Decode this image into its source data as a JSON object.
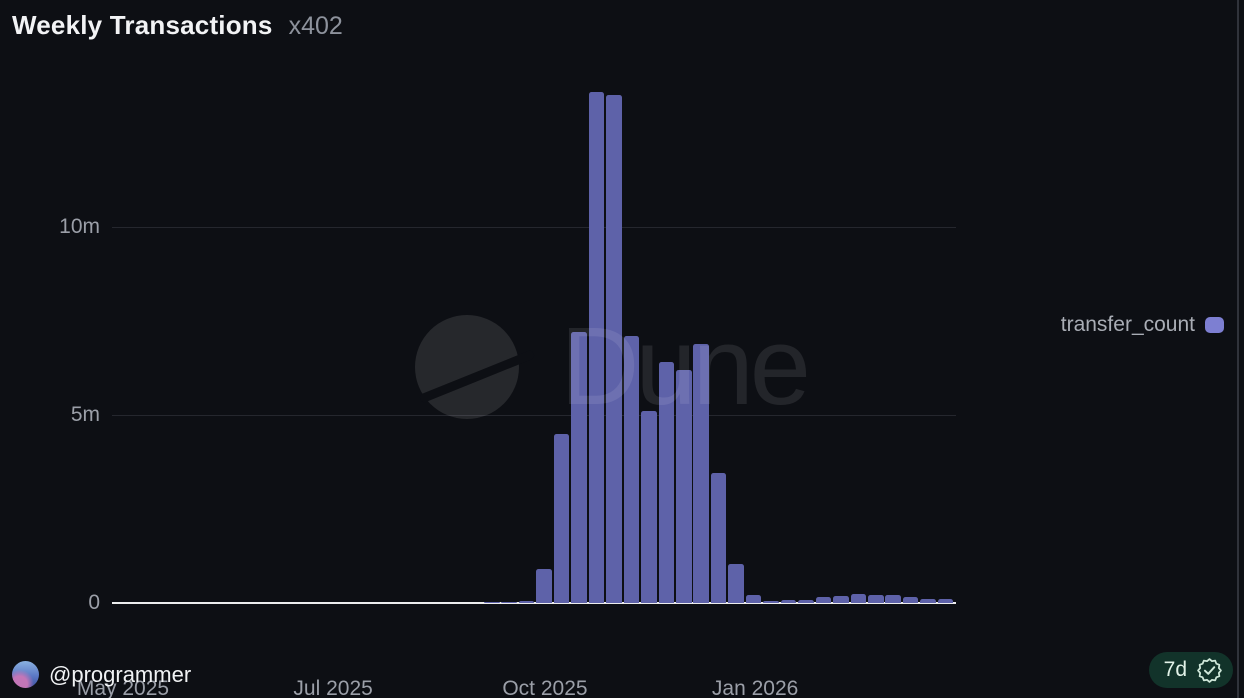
{
  "header": {
    "title": "Weekly Transactions",
    "subtitle": "x402"
  },
  "legend": {
    "label": "transfer_count",
    "swatch_color": "#7d7fd2"
  },
  "watermark": {
    "text": "Dune",
    "icon": "dune-logo-icon"
  },
  "footer": {
    "author": "@programmer",
    "badge_label": "7d",
    "badge_icon": "verified-check-icon"
  },
  "colors": {
    "background": "#0d0f14",
    "bar": "#5e62a9",
    "legend_swatch": "#7d7fd2",
    "gridline": "#25272e",
    "axis_baseline": "#ecedee",
    "tick_text": "#9b9fa8",
    "title_text": "#f2f3f5",
    "subtitle_text": "#8d929c",
    "badge_bg": "#12332a",
    "badge_text": "#e2f2e8"
  },
  "chart_data": {
    "type": "bar",
    "title": "Weekly Transactions",
    "unit": "millions of transactions per week",
    "series": [
      {
        "name": "transfer_count",
        "values": [
          0.03,
          0.03,
          0.05,
          0.9,
          4.5,
          7.2,
          13.6,
          13.5,
          7.1,
          5.1,
          6.4,
          6.2,
          6.9,
          3.45,
          1.05,
          0.2,
          0.05,
          0.08,
          0.08,
          0.16,
          0.19,
          0.25,
          0.22,
          0.21,
          0.16,
          0.11,
          0.12
        ]
      }
    ],
    "x_ticks": [
      {
        "label": "May 2025",
        "pos": 0.013
      },
      {
        "label": "Jul 2025",
        "pos": 0.262
      },
      {
        "label": "Oct 2025",
        "pos": 0.513
      },
      {
        "label": "Jan 2026",
        "pos": 0.762
      }
    ],
    "y_ticks": [
      {
        "label": "0",
        "value": 0
      },
      {
        "label": "5m",
        "value": 5
      },
      {
        "label": "10m",
        "value": 10
      }
    ],
    "ylim": [
      0,
      14.44
    ],
    "grid": "horizontal",
    "legend_position": "right",
    "bars_start_fraction": 0.4408,
    "bar_pitch_fraction": 0.02068
  }
}
